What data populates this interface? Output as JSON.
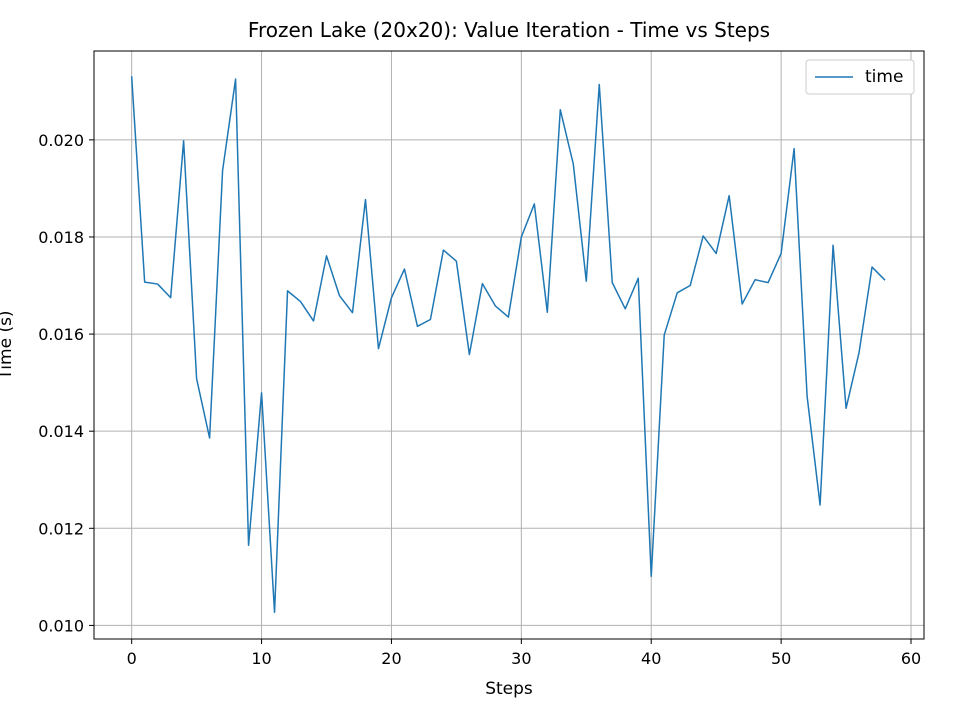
{
  "chart_data": {
    "type": "line",
    "title": "Frozen Lake (20x20): Value Iteration - Time vs Steps",
    "xlabel": "Steps",
    "ylabel": "Time (s)",
    "xlim": [
      -2.9,
      61
    ],
    "ylim": [
      0.00972,
      0.02183
    ],
    "xticks": [
      0,
      10,
      20,
      30,
      40,
      50,
      60
    ],
    "xtick_labels": [
      "0",
      "10",
      "20",
      "30",
      "40",
      "50",
      "60"
    ],
    "yticks": [
      0.01,
      0.012,
      0.014,
      0.016,
      0.018,
      0.02
    ],
    "ytick_labels": [
      "0.010",
      "0.012",
      "0.014",
      "0.016",
      "0.018",
      "0.020"
    ],
    "grid": true,
    "legend_position": "top-right",
    "line_color": "#1f77b4",
    "series": [
      {
        "name": "time",
        "x": [
          0,
          1,
          2,
          3,
          4,
          5,
          6,
          7,
          8,
          9,
          10,
          11,
          12,
          13,
          14,
          15,
          16,
          17,
          18,
          19,
          20,
          21,
          22,
          23,
          24,
          25,
          26,
          27,
          28,
          29,
          30,
          31,
          32,
          33,
          34,
          35,
          36,
          37,
          38,
          39,
          40,
          41,
          42,
          43,
          44,
          45,
          46,
          47,
          48,
          49,
          50,
          51,
          52,
          53,
          54,
          55,
          56,
          57,
          58
        ],
        "values": [
          0.02131,
          0.01707,
          0.01703,
          0.01675,
          0.01998,
          0.01508,
          0.01386,
          0.01937,
          0.02125,
          0.01165,
          0.01479,
          0.01027,
          0.01689,
          0.01667,
          0.01627,
          0.01761,
          0.01679,
          0.01644,
          0.01877,
          0.0157,
          0.01675,
          0.01734,
          0.01616,
          0.0163,
          0.01773,
          0.0175,
          0.01558,
          0.01704,
          0.01658,
          0.01635,
          0.018,
          0.01868,
          0.01645,
          0.02062,
          0.0195,
          0.01709,
          0.02114,
          0.01706,
          0.01652,
          0.01715,
          0.01101,
          0.01598,
          0.01685,
          0.017,
          0.01802,
          0.01766,
          0.01885,
          0.01662,
          0.01712,
          0.01706,
          0.01766,
          0.01982,
          0.01472,
          0.01248,
          0.01783,
          0.01447,
          0.01562,
          0.01738,
          0.01711
        ]
      }
    ]
  }
}
